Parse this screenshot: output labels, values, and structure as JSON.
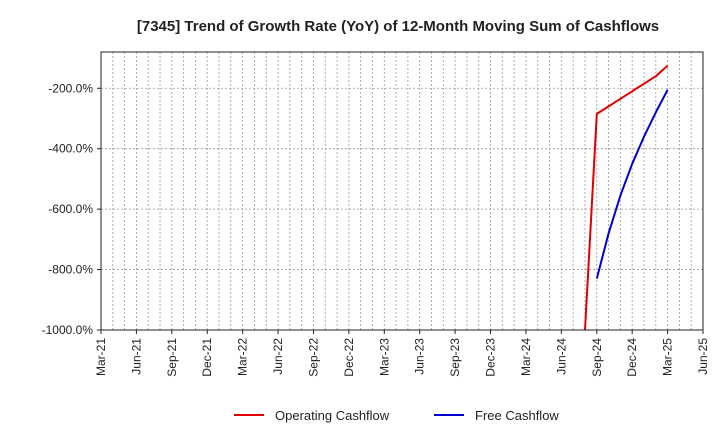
{
  "chart_data": {
    "type": "line",
    "title": "[7345]  Trend of Growth Rate (YoY) of 12-Month Moving Sum of Cashflows",
    "xlabel": "",
    "ylabel": "",
    "x_range": [
      "2021-03",
      "2025-06"
    ],
    "ylim": [
      -1000,
      -80
    ],
    "y_ticks": [
      -200,
      -400,
      -600,
      -800,
      -1000
    ],
    "y_tick_labels": [
      "-200.0%",
      "-400.0%",
      "-600.0%",
      "-800.0%",
      "-1000.0%"
    ],
    "x_ticks": [
      "2021-03",
      "2021-06",
      "2021-09",
      "2021-12",
      "2022-03",
      "2022-06",
      "2022-09",
      "2022-12",
      "2023-03",
      "2023-06",
      "2023-09",
      "2023-12",
      "2024-03",
      "2024-06",
      "2024-09",
      "2024-12",
      "2025-03",
      "2025-06"
    ],
    "x_tick_labels": [
      "Mar-21",
      "Jun-21",
      "Sep-21",
      "Dec-21",
      "Mar-22",
      "Jun-22",
      "Sep-22",
      "Dec-22",
      "Mar-23",
      "Jun-23",
      "Sep-23",
      "Dec-23",
      "Mar-24",
      "Jun-24",
      "Sep-24",
      "Dec-24",
      "Mar-25",
      "Jun-25"
    ],
    "grid": true,
    "legend_position": "bottom",
    "series": [
      {
        "name": "Operating Cashflow",
        "color": "#e00000",
        "points": [
          {
            "x": "2024-08",
            "y": -1000
          },
          {
            "x": "2024-09",
            "y": -285
          },
          {
            "x": "2024-10",
            "y": -260
          },
          {
            "x": "2024-11",
            "y": -235
          },
          {
            "x": "2024-12",
            "y": -210
          },
          {
            "x": "2025-01",
            "y": -185
          },
          {
            "x": "2025-02",
            "y": -160
          },
          {
            "x": "2025-03",
            "y": -125
          }
        ]
      },
      {
        "name": "Free Cashflow",
        "color": "#0000cc",
        "points": [
          {
            "x": "2024-09",
            "y": -830
          },
          {
            "x": "2024-10",
            "y": -680
          },
          {
            "x": "2024-11",
            "y": -555
          },
          {
            "x": "2024-12",
            "y": -450
          },
          {
            "x": "2025-01",
            "y": -360
          },
          {
            "x": "2025-02",
            "y": -280
          },
          {
            "x": "2025-03",
            "y": -205
          }
        ]
      }
    ]
  }
}
